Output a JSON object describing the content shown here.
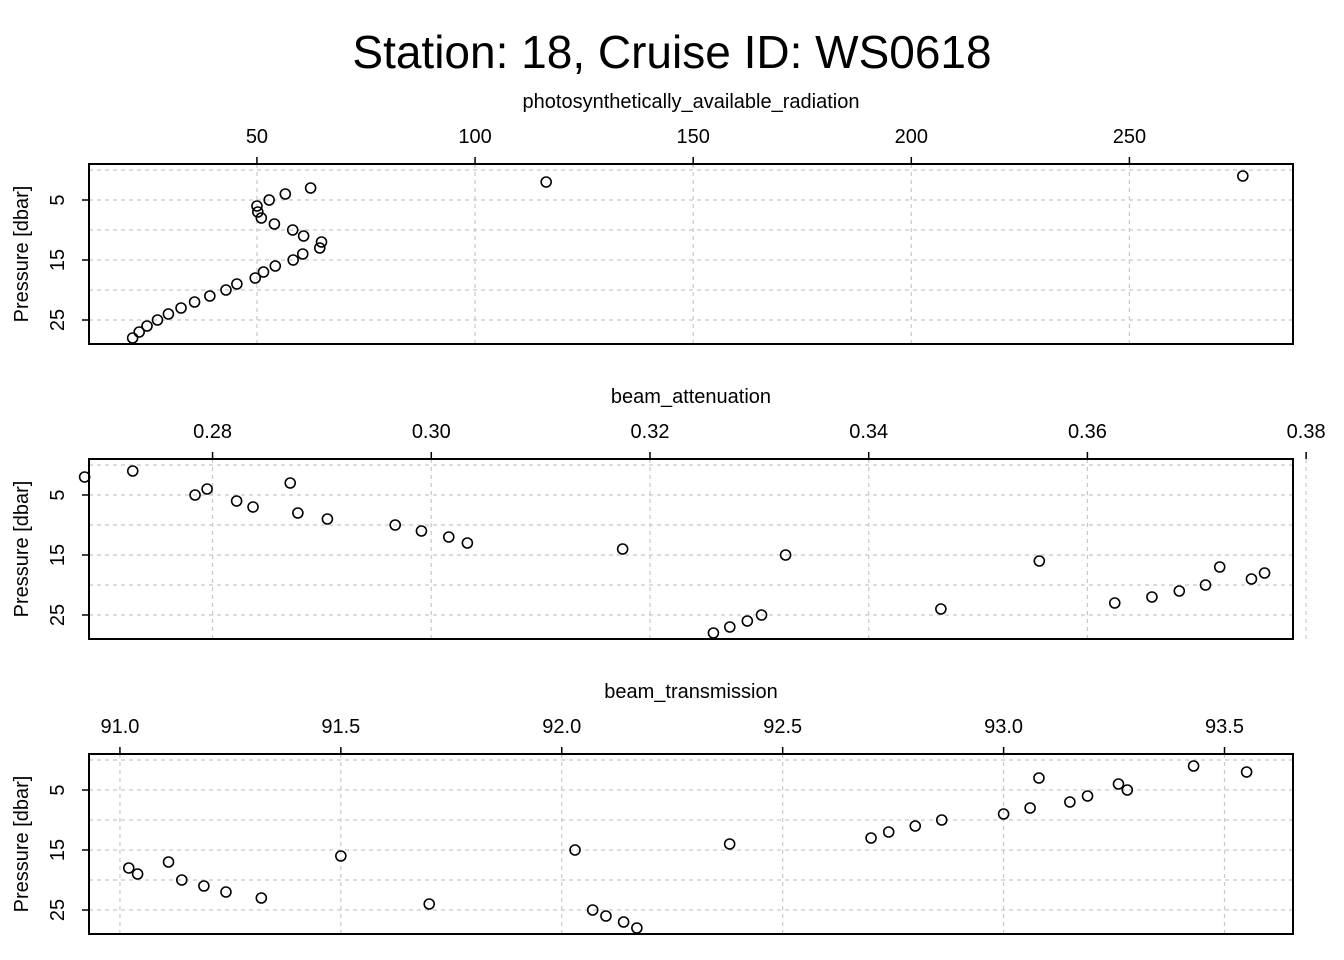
{
  "title": "Station: 18, Cruise ID: WS0618",
  "chart_data": [
    {
      "type": "scatter",
      "xlabel": "photosynthetically_available_radiation",
      "ylabel": "Pressure [dbar]",
      "xlim": [
        11.5,
        287.5
      ],
      "ylim": [
        29,
        -1
      ],
      "x_ticks": [
        50,
        100,
        150,
        200,
        250
      ],
      "x_tick_labels": [
        "50",
        "100",
        "150",
        "200",
        "250"
      ],
      "y_ticks": [
        5,
        15,
        25
      ],
      "y_tick_labels": [
        "5",
        "15",
        "25"
      ],
      "y_grid": [
        0,
        5,
        10,
        15,
        20,
        25
      ],
      "grid": true,
      "x_axis_position": "top",
      "points": [
        {
          "x": 276.0,
          "y": 1
        },
        {
          "x": 116.3,
          "y": 2
        },
        {
          "x": 62.3,
          "y": 3
        },
        {
          "x": 56.5,
          "y": 4
        },
        {
          "x": 52.8,
          "y": 5
        },
        {
          "x": 50.0,
          "y": 6
        },
        {
          "x": 50.2,
          "y": 7
        },
        {
          "x": 51.0,
          "y": 8
        },
        {
          "x": 54.0,
          "y": 9
        },
        {
          "x": 58.2,
          "y": 10
        },
        {
          "x": 60.7,
          "y": 11
        },
        {
          "x": 64.8,
          "y": 12
        },
        {
          "x": 64.4,
          "y": 13
        },
        {
          "x": 60.5,
          "y": 14
        },
        {
          "x": 58.3,
          "y": 15
        },
        {
          "x": 54.2,
          "y": 16
        },
        {
          "x": 51.5,
          "y": 17
        },
        {
          "x": 49.6,
          "y": 18
        },
        {
          "x": 45.4,
          "y": 19
        },
        {
          "x": 42.9,
          "y": 20
        },
        {
          "x": 39.2,
          "y": 21
        },
        {
          "x": 35.7,
          "y": 22
        },
        {
          "x": 32.6,
          "y": 23
        },
        {
          "x": 29.7,
          "y": 24
        },
        {
          "x": 27.2,
          "y": 25
        },
        {
          "x": 24.8,
          "y": 26
        },
        {
          "x": 23.0,
          "y": 27
        },
        {
          "x": 21.5,
          "y": 28
        }
      ]
    },
    {
      "type": "scatter",
      "xlabel": "beam_attenuation",
      "ylabel": "Pressure [dbar]",
      "xlim": [
        0.2687,
        0.3788
      ],
      "ylim": [
        29,
        -1
      ],
      "x_ticks": [
        0.28,
        0.3,
        0.32,
        0.34,
        0.36,
        0.38
      ],
      "x_tick_labels": [
        "0.28",
        "0.30",
        "0.32",
        "0.34",
        "0.36",
        "0.38"
      ],
      "y_ticks": [
        5,
        15,
        25
      ],
      "y_tick_labels": [
        "5",
        "15",
        "25"
      ],
      "y_grid": [
        0,
        5,
        10,
        15,
        20,
        25
      ],
      "grid": true,
      "x_axis_position": "top",
      "points": [
        {
          "x": 0.2727,
          "y": 1
        },
        {
          "x": 0.2683,
          "y": 2
        },
        {
          "x": 0.2871,
          "y": 3
        },
        {
          "x": 0.2795,
          "y": 4
        },
        {
          "x": 0.2784,
          "y": 5
        },
        {
          "x": 0.2822,
          "y": 6
        },
        {
          "x": 0.2837,
          "y": 7
        },
        {
          "x": 0.2878,
          "y": 8
        },
        {
          "x": 0.2905,
          "y": 9
        },
        {
          "x": 0.2967,
          "y": 10
        },
        {
          "x": 0.2991,
          "y": 11
        },
        {
          "x": 0.3016,
          "y": 12
        },
        {
          "x": 0.3033,
          "y": 13
        },
        {
          "x": 0.3175,
          "y": 14
        },
        {
          "x": 0.3324,
          "y": 15
        },
        {
          "x": 0.3556,
          "y": 16
        },
        {
          "x": 0.3721,
          "y": 17
        },
        {
          "x": 0.3762,
          "y": 18
        },
        {
          "x": 0.375,
          "y": 19
        },
        {
          "x": 0.3708,
          "y": 20
        },
        {
          "x": 0.3684,
          "y": 21
        },
        {
          "x": 0.3659,
          "y": 22
        },
        {
          "x": 0.3625,
          "y": 23
        },
        {
          "x": 0.3466,
          "y": 24
        },
        {
          "x": 0.3302,
          "y": 25
        },
        {
          "x": 0.3289,
          "y": 26
        },
        {
          "x": 0.3273,
          "y": 27
        },
        {
          "x": 0.3258,
          "y": 28
        }
      ]
    },
    {
      "type": "scatter",
      "xlabel": "beam_transmission",
      "ylabel": "Pressure [dbar]",
      "xlim": [
        90.93,
        93.655
      ],
      "ylim": [
        29,
        -1
      ],
      "x_ticks": [
        91.0,
        91.5,
        92.0,
        92.5,
        93.0,
        93.5
      ],
      "x_tick_labels": [
        "91.0",
        "91.5",
        "92.0",
        "92.5",
        "93.0",
        "93.5"
      ],
      "y_ticks": [
        5,
        15,
        25
      ],
      "y_tick_labels": [
        "5",
        "15",
        "25"
      ],
      "y_grid": [
        0,
        5,
        10,
        15,
        20,
        25
      ],
      "grid": true,
      "x_axis_position": "top",
      "points": [
        {
          "x": 93.43,
          "y": 1
        },
        {
          "x": 93.55,
          "y": 2
        },
        {
          "x": 93.08,
          "y": 3
        },
        {
          "x": 93.26,
          "y": 4
        },
        {
          "x": 93.28,
          "y": 5
        },
        {
          "x": 93.19,
          "y": 6
        },
        {
          "x": 93.15,
          "y": 7
        },
        {
          "x": 93.06,
          "y": 8
        },
        {
          "x": 93.0,
          "y": 9
        },
        {
          "x": 92.86,
          "y": 10
        },
        {
          "x": 92.8,
          "y": 11
        },
        {
          "x": 92.74,
          "y": 12
        },
        {
          "x": 92.7,
          "y": 13
        },
        {
          "x": 92.38,
          "y": 14
        },
        {
          "x": 92.03,
          "y": 15
        },
        {
          "x": 91.5,
          "y": 16
        },
        {
          "x": 91.11,
          "y": 17
        },
        {
          "x": 91.02,
          "y": 18
        },
        {
          "x": 91.04,
          "y": 19
        },
        {
          "x": 91.14,
          "y": 20
        },
        {
          "x": 91.19,
          "y": 21
        },
        {
          "x": 91.24,
          "y": 22
        },
        {
          "x": 91.32,
          "y": 23
        },
        {
          "x": 91.7,
          "y": 24
        },
        {
          "x": 92.07,
          "y": 25
        },
        {
          "x": 92.1,
          "y": 26
        },
        {
          "x": 92.14,
          "y": 27
        },
        {
          "x": 92.17,
          "y": 28
        }
      ]
    }
  ]
}
